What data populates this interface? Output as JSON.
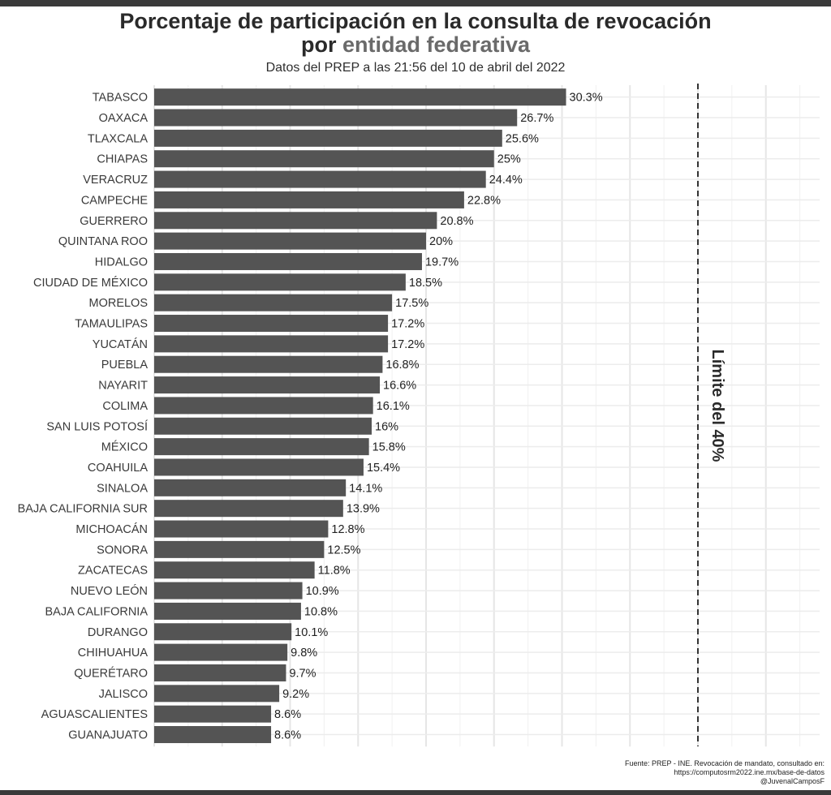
{
  "header": {
    "title_line1": "Porcentaje de participación en la consulta de revocación",
    "title_line2_prefix": "por ",
    "title_line2_highlight": "entidad federativa",
    "subtitle": "Datos del PREP a las 21:56 del 10 de abril del 2022"
  },
  "footer": {
    "source_line1": "Fuente: PREP - INE. Revocación de mandato, consultado en:",
    "source_line2": "https://computosrm2022.ine.mx/base-de-datos",
    "source_line3": "@JuvenalCamposF"
  },
  "chart_data": {
    "type": "bar",
    "orientation": "horizontal",
    "categories": [
      "TABASCO",
      "OAXACA",
      "TLAXCALA",
      "CHIAPAS",
      "VERACRUZ",
      "CAMPECHE",
      "GUERRERO",
      "QUINTANA ROO",
      "HIDALGO",
      "CIUDAD DE MÉXICO",
      "MORELOS",
      "TAMAULIPAS",
      "YUCATÁN",
      "PUEBLA",
      "NAYARIT",
      "COLIMA",
      "SAN LUIS POTOSÍ",
      "MÉXICO",
      "COAHUILA",
      "SINALOA",
      "BAJA CALIFORNIA SUR",
      "MICHOACÁN",
      "SONORA",
      "ZACATECAS",
      "NUEVO LEÓN",
      "BAJA CALIFORNIA",
      "DURANGO",
      "CHIHUAHUA",
      "QUERÉTARO",
      "JALISCO",
      "AGUASCALIENTES",
      "GUANAJUATO"
    ],
    "values": [
      30.3,
      26.7,
      25.6,
      25,
      24.4,
      22.8,
      20.8,
      20,
      19.7,
      18.5,
      17.5,
      17.2,
      17.2,
      16.8,
      16.6,
      16.1,
      16,
      15.8,
      15.4,
      14.1,
      13.9,
      12.8,
      12.5,
      11.8,
      10.9,
      10.8,
      10.1,
      9.8,
      9.7,
      9.2,
      8.6,
      8.6
    ],
    "value_labels": [
      "30.3%",
      "26.7%",
      "25.6%",
      "25%",
      "24.4%",
      "22.8%",
      "20.8%",
      "20%",
      "19.7%",
      "18.5%",
      "17.5%",
      "17.2%",
      "17.2%",
      "16.8%",
      "16.6%",
      "16.1%",
      "16%",
      "15.8%",
      "15.4%",
      "14.1%",
      "13.9%",
      "12.8%",
      "12.5%",
      "11.8%",
      "10.9%",
      "10.8%",
      "10.1%",
      "9.8%",
      "9.7%",
      "9.2%",
      "8.6%",
      "8.6%"
    ],
    "xlim": [
      0,
      50
    ],
    "reference_line": {
      "value": 40,
      "label": "Límite del 40%"
    },
    "bar_color": "#545454",
    "grid": true,
    "legend": false
  }
}
